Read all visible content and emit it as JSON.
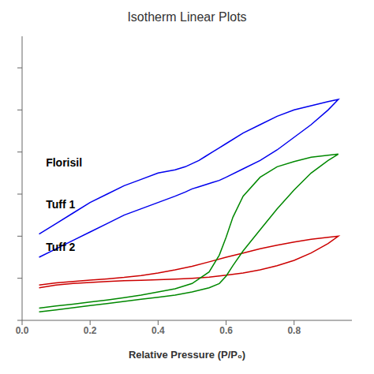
{
  "chart_data": {
    "type": "line",
    "title": "Isotherm Linear Plots",
    "xlabel": "Relative Pressure (P/P₀)",
    "xlim": [
      0.0,
      0.97
    ],
    "ylim": [
      0.0,
      1.35
    ],
    "xticks": [
      {
        "value": 0.0,
        "label": "0.0"
      },
      0.2,
      0.4,
      0.6,
      0.8
    ],
    "yticks": [
      {
        "value": 0.0,
        "label": ""
      },
      {
        "value": 0.2,
        "label": ""
      },
      {
        "value": 0.4,
        "label": ""
      },
      {
        "value": 0.6,
        "label": ""
      },
      {
        "value": 0.8,
        "label": ""
      },
      {
        "value": 1.0,
        "label": ""
      },
      {
        "value": 1.2,
        "label": ""
      }
    ],
    "tick_labels": "x",
    "grid": false,
    "series": [
      {
        "name": "Florisil",
        "color": "#0000ee",
        "x": [
          0.05,
          0.1,
          0.15,
          0.2,
          0.25,
          0.3,
          0.35,
          0.4,
          0.45,
          0.48,
          0.5,
          0.52,
          0.54,
          0.56,
          0.58,
          0.6,
          0.65,
          0.7,
          0.75,
          0.8,
          0.85,
          0.9,
          0.93,
          0.93,
          0.9,
          0.85,
          0.8,
          0.75,
          0.7,
          0.65,
          0.6,
          0.58,
          0.56,
          0.54,
          0.52,
          0.5,
          0.48,
          0.45,
          0.4,
          0.35,
          0.3,
          0.25,
          0.2,
          0.15,
          0.1,
          0.05
        ],
        "values": [
          0.3,
          0.34,
          0.38,
          0.42,
          0.46,
          0.5,
          0.53,
          0.56,
          0.59,
          0.61,
          0.625,
          0.635,
          0.645,
          0.655,
          0.665,
          0.68,
          0.72,
          0.76,
          0.81,
          0.87,
          0.93,
          1.0,
          1.05,
          1.05,
          1.04,
          1.02,
          1.0,
          0.97,
          0.93,
          0.89,
          0.84,
          0.82,
          0.8,
          0.78,
          0.76,
          0.745,
          0.73,
          0.715,
          0.7,
          0.67,
          0.64,
          0.6,
          0.56,
          0.51,
          0.46,
          0.41
        ]
      },
      {
        "name": "Tuff 1",
        "color": "#cc0000",
        "x": [
          0.05,
          0.1,
          0.15,
          0.2,
          0.25,
          0.3,
          0.35,
          0.4,
          0.45,
          0.5,
          0.55,
          0.6,
          0.65,
          0.7,
          0.75,
          0.8,
          0.85,
          0.9,
          0.93,
          0.93,
          0.9,
          0.85,
          0.8,
          0.75,
          0.7,
          0.65,
          0.6,
          0.55,
          0.5,
          0.45,
          0.4,
          0.35,
          0.3,
          0.25,
          0.2,
          0.15,
          0.1,
          0.05
        ],
        "values": [
          0.155,
          0.168,
          0.175,
          0.18,
          0.185,
          0.188,
          0.19,
          0.193,
          0.196,
          0.2,
          0.205,
          0.215,
          0.225,
          0.24,
          0.26,
          0.285,
          0.32,
          0.365,
          0.4,
          0.4,
          0.395,
          0.385,
          0.372,
          0.357,
          0.34,
          0.32,
          0.3,
          0.278,
          0.257,
          0.24,
          0.225,
          0.213,
          0.204,
          0.197,
          0.191,
          0.185,
          0.178,
          0.168
        ]
      },
      {
        "name": "Tuff 2",
        "color": "#008800",
        "x": [
          0.05,
          0.1,
          0.15,
          0.2,
          0.25,
          0.3,
          0.35,
          0.4,
          0.45,
          0.5,
          0.55,
          0.58,
          0.6,
          0.62,
          0.65,
          0.7,
          0.75,
          0.8,
          0.85,
          0.9,
          0.93,
          0.93,
          0.9,
          0.85,
          0.8,
          0.75,
          0.7,
          0.65,
          0.62,
          0.6,
          0.58,
          0.55,
          0.5,
          0.45,
          0.4,
          0.35,
          0.3,
          0.25,
          0.2,
          0.15,
          0.1,
          0.05
        ],
        "values": [
          0.04,
          0.05,
          0.06,
          0.07,
          0.08,
          0.09,
          0.1,
          0.11,
          0.12,
          0.135,
          0.155,
          0.175,
          0.21,
          0.26,
          0.33,
          0.43,
          0.53,
          0.62,
          0.7,
          0.76,
          0.79,
          0.79,
          0.785,
          0.775,
          0.755,
          0.73,
          0.68,
          0.59,
          0.49,
          0.395,
          0.31,
          0.23,
          0.175,
          0.15,
          0.135,
          0.12,
          0.108,
          0.097,
          0.087,
          0.077,
          0.068,
          0.058
        ]
      }
    ],
    "annotations": [
      {
        "text": "Florisil",
        "x": 0.07,
        "y": 0.75
      },
      {
        "text": "Tuff 1",
        "x": 0.07,
        "y": 0.55
      },
      {
        "text": "Tuff 2",
        "x": 0.07,
        "y": 0.35
      }
    ]
  }
}
